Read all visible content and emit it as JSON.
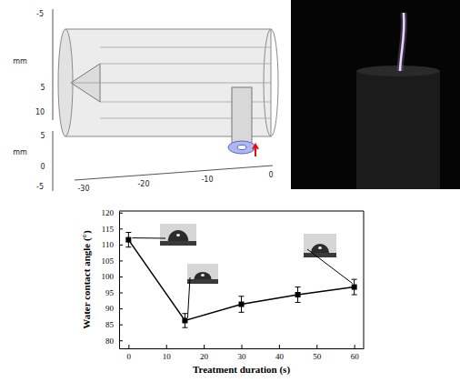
{
  "chart_data": {
    "type": "line",
    "x_label": "Treatment duration (s)",
    "y_label": "Water contact angle (°)",
    "x": [
      0,
      15,
      30,
      45,
      60
    ],
    "series": [
      {
        "values": [
          111.5,
          86.2,
          91.3,
          94.3,
          96.7
        ],
        "errors": [
          2.3,
          2.2,
          2.5,
          2.4,
          2.4
        ],
        "color": "#000000",
        "marker": "square",
        "line_style": "solid"
      }
    ],
    "xlim": [
      -2.5,
      62.5
    ],
    "xticks": [
      0,
      10,
      20,
      30,
      40,
      50,
      60
    ],
    "ylim": [
      77.5,
      120.5
    ],
    "yticks": [
      80,
      85,
      90,
      95,
      100,
      105,
      110,
      115,
      120
    ],
    "grid": false
  },
  "cad_view": {
    "unit": "mm",
    "upper_ticks": [
      "-5",
      "5",
      "10"
    ],
    "lower_ticks": [
      "5",
      "0",
      "-5"
    ],
    "length_ticks": [
      "-30",
      "-20",
      "-10",
      "0"
    ]
  }
}
